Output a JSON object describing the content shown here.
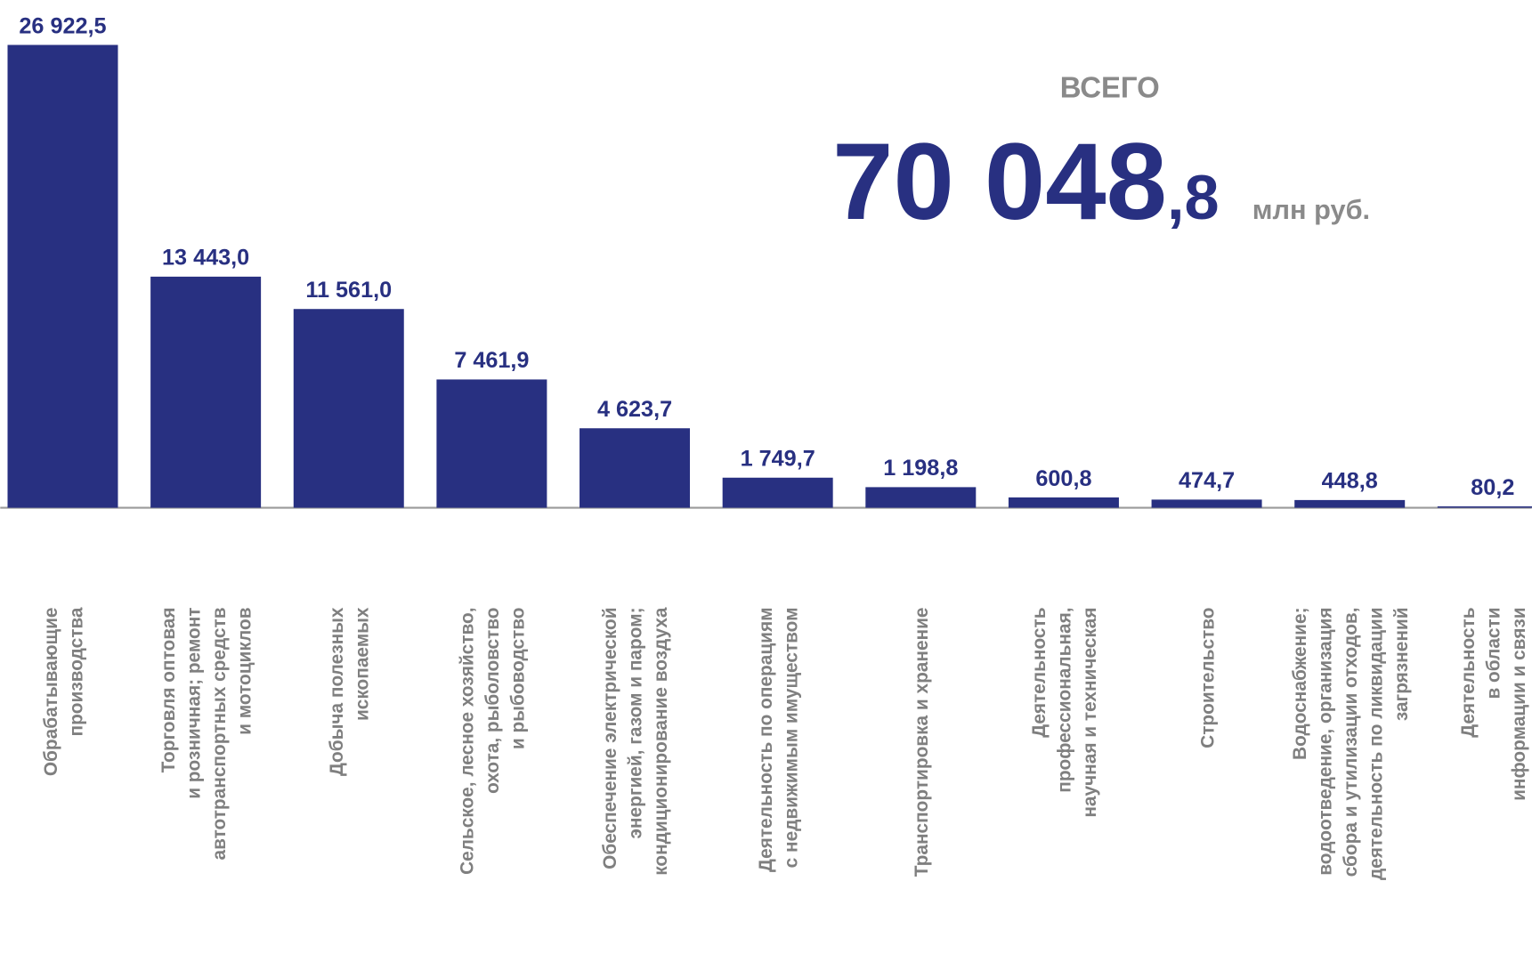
{
  "chart_data": {
    "type": "bar",
    "categories": [
      [
        "Обрабатывающие",
        "производства"
      ],
      [
        "Торговля оптовая",
        "и розничная; ремонт",
        "автотранспортных средств",
        "и мотоциклов"
      ],
      [
        "Добыча полезных",
        "ископаемых"
      ],
      [
        "Сельское, лесное хозяйство,",
        "охота, рыболовство",
        "и рыбоводство"
      ],
      [
        "Обеспечение электрической",
        "энергией, газом и паром;",
        "кондиционирование воздуха"
      ],
      [
        "Деятельность по операциям",
        "с недвижимым имуществом"
      ],
      [
        "Транспортировка и хранение"
      ],
      [
        "Деятельность",
        "профессиональная,",
        "научная и техническая"
      ],
      [
        "Строительство"
      ],
      [
        "Водоснабжение;",
        "водоотведение, организация",
        "сбора и утилизации отходов,",
        "деятельность по ликвидации",
        "загрязнений"
      ],
      [
        "Деятельность",
        "в области",
        "информации и связи"
      ]
    ],
    "values": [
      26922.5,
      13443.0,
      11561.0,
      7461.9,
      4623.7,
      1749.7,
      1198.8,
      600.8,
      474.7,
      448.8,
      80.2
    ],
    "value_labels": [
      "26 922,5",
      "13 443,0",
      "11 561,0",
      "7 461,9",
      "4 623,7",
      "1 749,7",
      "1 198,8",
      "600,8",
      "474,7",
      "448,8",
      "80,2"
    ],
    "color": "#283081",
    "total": {
      "label": "ВСЕГО",
      "value": 70048.8,
      "value_parts": [
        "70 048",
        ",8"
      ],
      "unit": "млн руб."
    }
  }
}
